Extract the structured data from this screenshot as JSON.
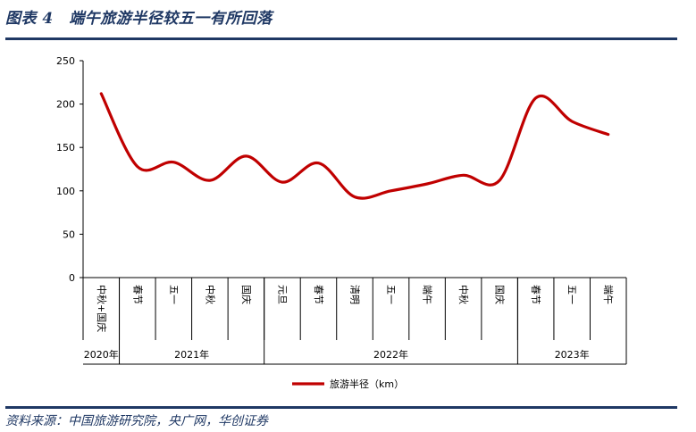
{
  "figure_title": "图表 4　端午旅游半径较五一有所回落",
  "source": "资料来源：中国旅游研究院，央广网，华创证券",
  "chart_data": {
    "type": "line",
    "title": "",
    "xlabel": "",
    "ylabel": "",
    "ylim": [
      0,
      250
    ],
    "yticks": [
      0,
      50,
      100,
      150,
      200,
      250
    ],
    "grid": false,
    "legend_position": "bottom-center",
    "line_color": "#c00000",
    "categories": [
      "中秋+国庆",
      "春节",
      "五一",
      "中秋",
      "国庆",
      "元旦",
      "春节",
      "清明",
      "五一",
      "端午",
      "中秋",
      "国庆",
      "春节",
      "五一",
      "端午"
    ],
    "year_groups": [
      {
        "label": "2020年",
        "span": 1
      },
      {
        "label": "2021年",
        "span": 4
      },
      {
        "label": "2022年",
        "span": 7
      },
      {
        "label": "2023年",
        "span": 3
      }
    ],
    "series": [
      {
        "name": "旅游半径（km）",
        "values": [
          212,
          128,
          133,
          112,
          140,
          110,
          132,
          93,
          100,
          108,
          118,
          112,
          207,
          180,
          165
        ]
      }
    ]
  }
}
